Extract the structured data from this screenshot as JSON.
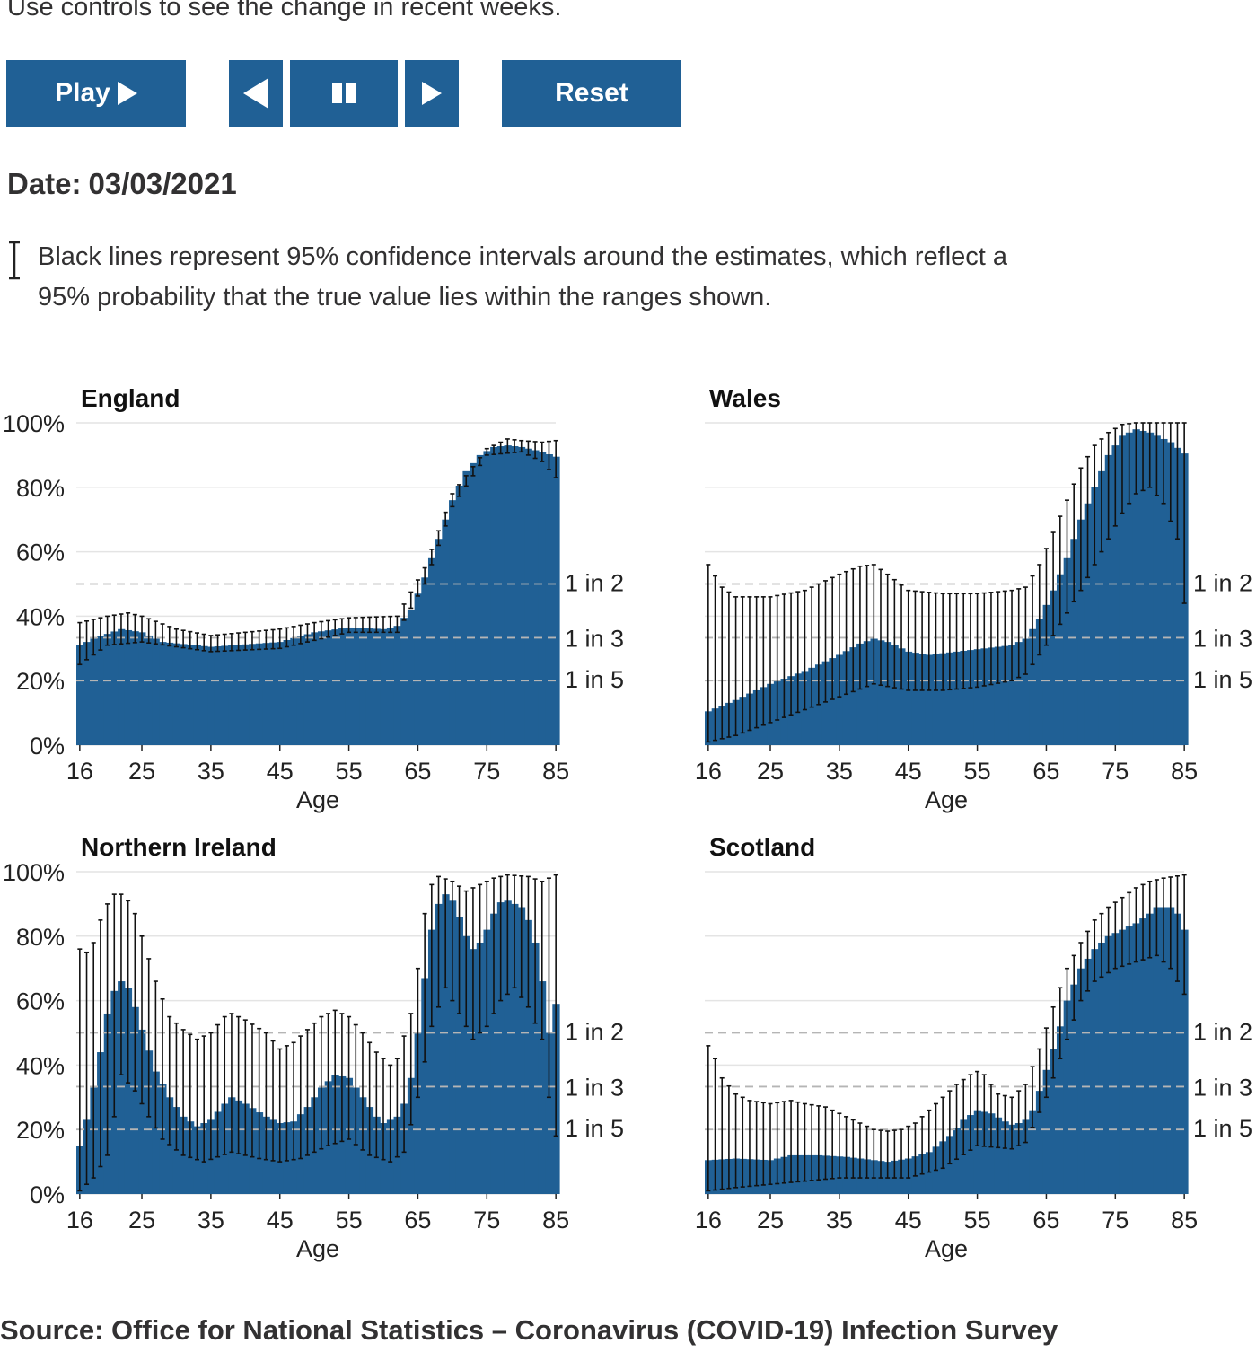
{
  "intro": "Use controls to see the change in recent weeks.",
  "controls": {
    "play_label": "Play",
    "back_label": "",
    "pause_label": "",
    "forward_label": "",
    "reset_label": "Reset",
    "accent_color": "#206095"
  },
  "date": {
    "label": "Date:",
    "value": "03/03/2021"
  },
  "ci_note": "Black lines represent 95% confidence intervals around the estimates, which reflect a 95% probability that the true value lies within the ranges shown.",
  "source": "Source: Office for National Statistics – Coronavirus (COVID-19) Infection Survey",
  "chart_data": [
    {
      "type": "bar",
      "title": "England",
      "xlabel": "Age",
      "ylabel": "",
      "x_ticks": [
        "16",
        "25",
        "35",
        "45",
        "55",
        "65",
        "75",
        "85"
      ],
      "y_ticks": [
        "0%",
        "20%",
        "40%",
        "60%",
        "80%",
        "100%"
      ],
      "ylim": [
        0,
        100
      ],
      "xlim": [
        16,
        85
      ],
      "reference_lines": [
        {
          "value": 50,
          "label": "1 in 2"
        },
        {
          "value": 33.3,
          "label": "1 in 3"
        },
        {
          "value": 20,
          "label": "1 in 5"
        }
      ],
      "color": "#206095",
      "series_keypoints": [
        [
          16,
          31
        ],
        [
          18,
          33
        ],
        [
          22,
          36
        ],
        [
          25,
          35
        ],
        [
          28,
          32
        ],
        [
          35,
          30.5
        ],
        [
          45,
          32
        ],
        [
          50,
          35
        ],
        [
          55,
          36.5
        ],
        [
          60,
          36
        ],
        [
          62,
          37
        ],
        [
          64,
          42
        ],
        [
          66,
          52
        ],
        [
          68,
          64
        ],
        [
          70,
          76
        ],
        [
          72,
          85
        ],
        [
          74,
          90
        ],
        [
          76,
          92.5
        ],
        [
          78,
          93
        ],
        [
          80,
          92.5
        ],
        [
          83,
          91
        ],
        [
          85,
          89.5
        ]
      ],
      "ci_lower_keypoints": [
        [
          16,
          25
        ],
        [
          20,
          31
        ],
        [
          25,
          32
        ],
        [
          35,
          29
        ],
        [
          45,
          30
        ],
        [
          55,
          35
        ],
        [
          62,
          35
        ],
        [
          66,
          50
        ],
        [
          70,
          74
        ],
        [
          75,
          90
        ],
        [
          80,
          91
        ],
        [
          83,
          88
        ],
        [
          85,
          83
        ]
      ],
      "ci_upper_keypoints": [
        [
          16,
          38
        ],
        [
          20,
          40
        ],
        [
          23,
          41
        ],
        [
          25,
          40
        ],
        [
          30,
          36
        ],
        [
          35,
          34
        ],
        [
          45,
          36
        ],
        [
          50,
          38
        ],
        [
          55,
          39.5
        ],
        [
          62,
          40
        ],
        [
          66,
          55
        ],
        [
          70,
          78
        ],
        [
          75,
          92
        ],
        [
          78,
          95
        ],
        [
          80,
          94.5
        ],
        [
          83,
          94
        ],
        [
          85,
          94.5
        ]
      ]
    },
    {
      "type": "bar",
      "title": "Wales",
      "xlabel": "Age",
      "ylabel": "",
      "x_ticks": [
        "16",
        "25",
        "35",
        "45",
        "55",
        "65",
        "75",
        "85"
      ],
      "y_ticks": [],
      "ylim": [
        0,
        100
      ],
      "xlim": [
        16,
        85
      ],
      "reference_lines": [
        {
          "value": 50,
          "label": "1 in 2"
        },
        {
          "value": 33.3,
          "label": "1 in 3"
        },
        {
          "value": 20,
          "label": "1 in 5"
        }
      ],
      "color": "#206095",
      "series_keypoints": [
        [
          16,
          10.5
        ],
        [
          20,
          14
        ],
        [
          25,
          19
        ],
        [
          30,
          23
        ],
        [
          35,
          28
        ],
        [
          38,
          31.5
        ],
        [
          40,
          33
        ],
        [
          42,
          32
        ],
        [
          45,
          29
        ],
        [
          48,
          28
        ],
        [
          52,
          29
        ],
        [
          56,
          30
        ],
        [
          60,
          31
        ],
        [
          62,
          33
        ],
        [
          64,
          39
        ],
        [
          66,
          48
        ],
        [
          68,
          58
        ],
        [
          70,
          70
        ],
        [
          72,
          80
        ],
        [
          74,
          90
        ],
        [
          76,
          96
        ],
        [
          78,
          98
        ],
        [
          80,
          97
        ],
        [
          83,
          94
        ],
        [
          85,
          90.5
        ]
      ],
      "ci_lower_keypoints": [
        [
          16,
          1
        ],
        [
          20,
          3
        ],
        [
          25,
          7
        ],
        [
          30,
          11
        ],
        [
          35,
          15
        ],
        [
          40,
          19
        ],
        [
          45,
          17
        ],
        [
          50,
          17
        ],
        [
          55,
          18
        ],
        [
          60,
          20
        ],
        [
          62,
          22
        ],
        [
          66,
          34
        ],
        [
          70,
          48
        ],
        [
          74,
          64
        ],
        [
          76,
          72
        ],
        [
          78,
          78
        ],
        [
          80,
          80
        ],
        [
          82,
          75
        ],
        [
          84,
          64
        ],
        [
          85,
          44
        ]
      ],
      "ci_upper_keypoints": [
        [
          16,
          56
        ],
        [
          18,
          49
        ],
        [
          20,
          46
        ],
        [
          25,
          46
        ],
        [
          30,
          48
        ],
        [
          35,
          53
        ],
        [
          38,
          55.5
        ],
        [
          40,
          56
        ],
        [
          42,
          53
        ],
        [
          45,
          48
        ],
        [
          50,
          47
        ],
        [
          55,
          47
        ],
        [
          60,
          48
        ],
        [
          62,
          49
        ],
        [
          64,
          56
        ],
        [
          66,
          66
        ],
        [
          68,
          76
        ],
        [
          70,
          86
        ],
        [
          72,
          93
        ],
        [
          74,
          97
        ],
        [
          76,
          99.5
        ],
        [
          78,
          100
        ],
        [
          85,
          100
        ]
      ]
    },
    {
      "type": "bar",
      "title": "Northern Ireland",
      "xlabel": "Age",
      "ylabel": "",
      "x_ticks": [
        "16",
        "25",
        "35",
        "45",
        "55",
        "65",
        "75",
        "85"
      ],
      "y_ticks": [
        "0%",
        "20%",
        "40%",
        "60%",
        "80%",
        "100%"
      ],
      "ylim": [
        0,
        100
      ],
      "xlim": [
        16,
        85
      ],
      "reference_lines": [
        {
          "value": 50,
          "label": "1 in 2"
        },
        {
          "value": 33.3,
          "label": "1 in 3"
        },
        {
          "value": 20,
          "label": "1 in 5"
        }
      ],
      "color": "#206095",
      "series_keypoints": [
        [
          16,
          15
        ],
        [
          17,
          23
        ],
        [
          18,
          33
        ],
        [
          19,
          44
        ],
        [
          20,
          56
        ],
        [
          21,
          63
        ],
        [
          22,
          66
        ],
        [
          23,
          64
        ],
        [
          24,
          58
        ],
        [
          25,
          51
        ],
        [
          27,
          38
        ],
        [
          29,
          30
        ],
        [
          31,
          24
        ],
        [
          33,
          21
        ],
        [
          35,
          23
        ],
        [
          37,
          28
        ],
        [
          38,
          30
        ],
        [
          40,
          28
        ],
        [
          43,
          24
        ],
        [
          45,
          22
        ],
        [
          47,
          22.5
        ],
        [
          49,
          27
        ],
        [
          51,
          33
        ],
        [
          53,
          37
        ],
        [
          55,
          36
        ],
        [
          57,
          30
        ],
        [
          59,
          24
        ],
        [
          60,
          22
        ],
        [
          62,
          24
        ],
        [
          63,
          28
        ],
        [
          64,
          36
        ],
        [
          65,
          50
        ],
        [
          66,
          67
        ],
        [
          67,
          82
        ],
        [
          68,
          90
        ],
        [
          69,
          93
        ],
        [
          70,
          91
        ],
        [
          71,
          86
        ],
        [
          72,
          80
        ],
        [
          73,
          76
        ],
        [
          74,
          78
        ],
        [
          75,
          82
        ],
        [
          76,
          87
        ],
        [
          77,
          90.5
        ],
        [
          78,
          91
        ],
        [
          80,
          89
        ],
        [
          81,
          85
        ],
        [
          82,
          78
        ],
        [
          83,
          66
        ],
        [
          84,
          50
        ],
        [
          85,
          59
        ]
      ],
      "ci_lower_keypoints": [
        [
          16,
          1
        ],
        [
          18,
          5
        ],
        [
          20,
          12
        ],
        [
          21,
          24
        ],
        [
          22,
          37
        ],
        [
          24,
          32
        ],
        [
          26,
          24
        ],
        [
          28,
          17
        ],
        [
          31,
          12
        ],
        [
          34,
          10
        ],
        [
          38,
          13
        ],
        [
          42,
          11
        ],
        [
          45,
          10
        ],
        [
          48,
          11
        ],
        [
          52,
          15
        ],
        [
          55,
          17
        ],
        [
          58,
          12
        ],
        [
          61,
          10
        ],
        [
          63,
          13
        ],
        [
          65,
          30
        ],
        [
          67,
          52
        ],
        [
          69,
          64
        ],
        [
          71,
          56
        ],
        [
          73,
          48
        ],
        [
          75,
          52
        ],
        [
          77,
          60
        ],
        [
          79,
          64
        ],
        [
          81,
          58
        ],
        [
          83,
          48
        ],
        [
          84,
          30
        ],
        [
          85,
          18
        ]
      ],
      "ci_upper_keypoints": [
        [
          16,
          76
        ],
        [
          17,
          75
        ],
        [
          18,
          78
        ],
        [
          19,
          85
        ],
        [
          20,
          90
        ],
        [
          21,
          93
        ],
        [
          22,
          93
        ],
        [
          23,
          91
        ],
        [
          24,
          87
        ],
        [
          25,
          80
        ],
        [
          27,
          66
        ],
        [
          29,
          55
        ],
        [
          31,
          51
        ],
        [
          33,
          48
        ],
        [
          35,
          50
        ],
        [
          37,
          55
        ],
        [
          38,
          56
        ],
        [
          40,
          54
        ],
        [
          43,
          50
        ],
        [
          45,
          45
        ],
        [
          47,
          47
        ],
        [
          49,
          51
        ],
        [
          51,
          55
        ],
        [
          53,
          57
        ],
        [
          55,
          55
        ],
        [
          57,
          50
        ],
        [
          59,
          44
        ],
        [
          61,
          40
        ],
        [
          62,
          42
        ],
        [
          64,
          56
        ],
        [
          65,
          70
        ],
        [
          66,
          87
        ],
        [
          67,
          96
        ],
        [
          68,
          98.5
        ],
        [
          70,
          97
        ],
        [
          72,
          94
        ],
        [
          74,
          96
        ],
        [
          76,
          98
        ],
        [
          78,
          99
        ],
        [
          81,
          98.5
        ],
        [
          83,
          97
        ],
        [
          85,
          99
        ]
      ]
    },
    {
      "type": "bar",
      "title": "Scotland",
      "xlabel": "Age",
      "ylabel": "",
      "x_ticks": [
        "16",
        "25",
        "35",
        "45",
        "55",
        "65",
        "75",
        "85"
      ],
      "y_ticks": [],
      "ylim": [
        0,
        100
      ],
      "xlim": [
        16,
        85
      ],
      "reference_lines": [
        {
          "value": 50,
          "label": "1 in 2"
        },
        {
          "value": 33.3,
          "label": "1 in 3"
        },
        {
          "value": 20,
          "label": "1 in 5"
        }
      ],
      "color": "#206095",
      "series_keypoints": [
        [
          16,
          10.5
        ],
        [
          20,
          11
        ],
        [
          25,
          10.5
        ],
        [
          28,
          12
        ],
        [
          32,
          12
        ],
        [
          36,
          11.5
        ],
        [
          40,
          10.5
        ],
        [
          42,
          10
        ],
        [
          45,
          11
        ],
        [
          48,
          13
        ],
        [
          51,
          18
        ],
        [
          53,
          23
        ],
        [
          55,
          26
        ],
        [
          57,
          25
        ],
        [
          59,
          22.5
        ],
        [
          60,
          21.5
        ],
        [
          61,
          22
        ],
        [
          62,
          23
        ],
        [
          63,
          26
        ],
        [
          64,
          32
        ],
        [
          66,
          45
        ],
        [
          67,
          52
        ],
        [
          68,
          60
        ],
        [
          70,
          70
        ],
        [
          72,
          76
        ],
        [
          74,
          80
        ],
        [
          76,
          82
        ],
        [
          78,
          84
        ],
        [
          80,
          87
        ],
        [
          81,
          89
        ],
        [
          83,
          89
        ],
        [
          84,
          87
        ],
        [
          85,
          82
        ]
      ],
      "ci_lower_keypoints": [
        [
          16,
          1
        ],
        [
          20,
          2
        ],
        [
          25,
          3
        ],
        [
          30,
          4
        ],
        [
          35,
          5
        ],
        [
          40,
          5
        ],
        [
          45,
          5
        ],
        [
          50,
          8
        ],
        [
          55,
          15
        ],
        [
          60,
          14
        ],
        [
          62,
          16
        ],
        [
          65,
          30
        ],
        [
          68,
          48
        ],
        [
          70,
          60
        ],
        [
          72,
          66
        ],
        [
          75,
          70
        ],
        [
          78,
          72
        ],
        [
          81,
          74
        ],
        [
          83,
          70
        ],
        [
          85,
          62
        ]
      ],
      "ci_upper_keypoints": [
        [
          16,
          46
        ],
        [
          17,
          42
        ],
        [
          18,
          36
        ],
        [
          20,
          31
        ],
        [
          22,
          29
        ],
        [
          25,
          28
        ],
        [
          28,
          29
        ],
        [
          30,
          28
        ],
        [
          33,
          27
        ],
        [
          35,
          25
        ],
        [
          38,
          22
        ],
        [
          40,
          20
        ],
        [
          42,
          19.5
        ],
        [
          44,
          20
        ],
        [
          46,
          22
        ],
        [
          48,
          26
        ],
        [
          50,
          30
        ],
        [
          52,
          34
        ],
        [
          54,
          37
        ],
        [
          55,
          38
        ],
        [
          56,
          37
        ],
        [
          57,
          34
        ],
        [
          58,
          31
        ],
        [
          60,
          30
        ],
        [
          62,
          34
        ],
        [
          64,
          45
        ],
        [
          66,
          58
        ],
        [
          68,
          70
        ],
        [
          70,
          78
        ],
        [
          72,
          85
        ],
        [
          74,
          89
        ],
        [
          76,
          92
        ],
        [
          78,
          95
        ],
        [
          80,
          97
        ],
        [
          82,
          98
        ],
        [
          85,
          99
        ]
      ]
    }
  ]
}
